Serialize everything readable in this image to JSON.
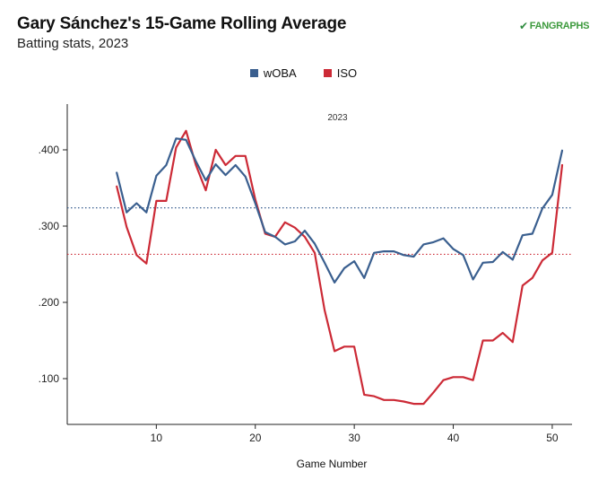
{
  "header": {
    "title": "Gary Sánchez's 15-Game Rolling Average",
    "subtitle": "Batting stats, 2023",
    "logo_text": "FANGRAPHS"
  },
  "chart_data": {
    "type": "line",
    "title": "Gary Sánchez's 15-Game Rolling Average",
    "subtitle": "Batting stats, 2023",
    "xlabel": "Game Number",
    "ylabel": "",
    "annotation": "2023",
    "xlim": [
      1,
      52
    ],
    "ylim": [
      0.04,
      0.46
    ],
    "xticks": [
      10,
      20,
      30,
      40,
      50
    ],
    "xtick_labels": [
      "10",
      "20",
      "30",
      "40",
      "50"
    ],
    "yticks": [
      0.1,
      0.2,
      0.3,
      0.4
    ],
    "ytick_labels": [
      ".100",
      ".200",
      ".300",
      ".400"
    ],
    "grid": false,
    "legend_position": "top-center",
    "x": [
      6,
      7,
      8,
      9,
      10,
      11,
      12,
      13,
      14,
      15,
      16,
      17,
      18,
      19,
      20,
      21,
      22,
      23,
      24,
      25,
      26,
      27,
      28,
      29,
      30,
      31,
      32,
      33,
      34,
      35,
      36,
      37,
      38,
      39,
      40,
      41,
      42,
      43,
      44,
      45,
      46,
      47,
      48,
      49,
      50,
      51
    ],
    "series": [
      {
        "name": "wOBA",
        "color": "#3a5f8f",
        "values": [
          0.37,
          0.318,
          0.33,
          0.318,
          0.366,
          0.38,
          0.415,
          0.413,
          0.385,
          0.36,
          0.381,
          0.367,
          0.38,
          0.365,
          0.33,
          0.292,
          0.286,
          0.276,
          0.28,
          0.294,
          0.277,
          0.252,
          0.226,
          0.245,
          0.254,
          0.232,
          0.265,
          0.267,
          0.267,
          0.262,
          0.26,
          0.276,
          0.279,
          0.284,
          0.27,
          0.262,
          0.23,
          0.252,
          0.253,
          0.266,
          0.256,
          0.288,
          0.29,
          0.323,
          0.341,
          0.399
        ],
        "reference": 0.324
      },
      {
        "name": "ISO",
        "color": "#cc2a36",
        "values": [
          0.352,
          0.299,
          0.262,
          0.251,
          0.333,
          0.333,
          0.403,
          0.425,
          0.38,
          0.347,
          0.4,
          0.38,
          0.392,
          0.392,
          0.335,
          0.29,
          0.286,
          0.305,
          0.298,
          0.286,
          0.265,
          0.19,
          0.136,
          0.142,
          0.142,
          0.079,
          0.077,
          0.072,
          0.072,
          0.07,
          0.067,
          0.067,
          0.082,
          0.098,
          0.102,
          0.102,
          0.098,
          0.15,
          0.15,
          0.16,
          0.148,
          0.222,
          0.232,
          0.255,
          0.265,
          0.38
        ],
        "reference": 0.263
      }
    ]
  }
}
